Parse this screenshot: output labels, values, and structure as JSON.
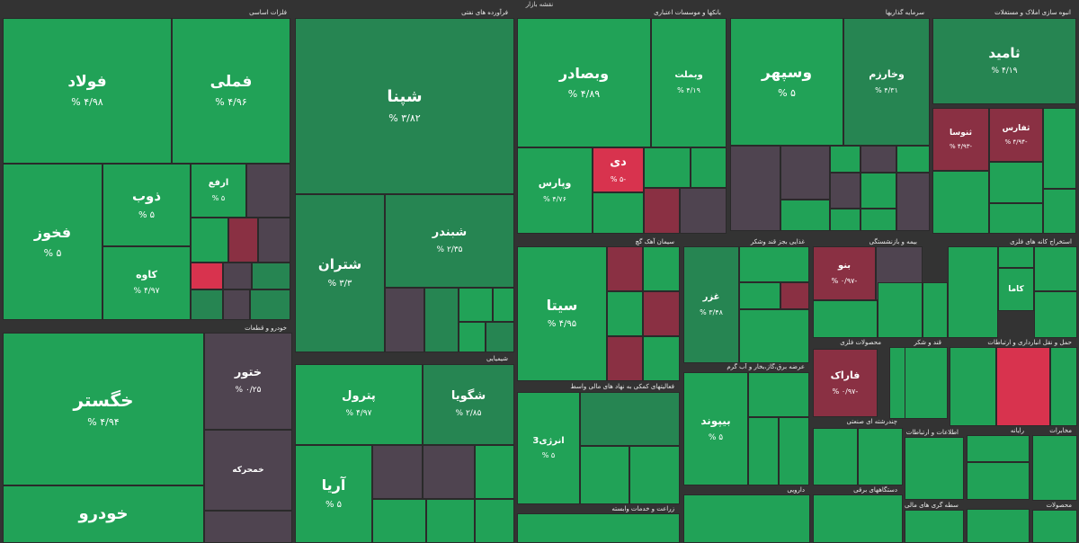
{
  "page_title": "نقشه بازار",
  "colors": {
    "green": "#21a257",
    "green_dark": "#268552",
    "gray": "#4f4450",
    "red": "#d8334e",
    "red_dark": "#8a3043"
  },
  "chart_data": {
    "type": "treemap",
    "title": "نقشه بازار",
    "sectors": [
      {
        "name": "فلزات اساسی"
      },
      {
        "name": "فرآورده های نفتی"
      },
      {
        "name": "بانکها و موسسات اعتباری"
      },
      {
        "name": "سرمایه گذاریها"
      },
      {
        "name": "انبوه سازی املاک و مستغلات"
      },
      {
        "name": "خودرو و قطعات"
      },
      {
        "name": "شیمیایی"
      },
      {
        "name": "سیمان آهک گچ"
      },
      {
        "name": "غذایی بجز قند وشکر"
      },
      {
        "name": "بیمه و بازنشستگی"
      },
      {
        "name": "استخراج کانه های فلزی"
      },
      {
        "name": "محصولات فلزی"
      },
      {
        "name": "قند و شکر"
      },
      {
        "name": "حمل و نقل انبارداری و ارتباطات"
      },
      {
        "name": "عرضه برق،گاز،بخار و آب گرم"
      },
      {
        "name": "فعالیتهای کمکی به نهاد های مالی واسط"
      },
      {
        "name": "چندرشته ای صنعتی"
      },
      {
        "name": "اطلاعات و ارتباطات"
      },
      {
        "name": "رایانه"
      },
      {
        "name": "زراعت و خدمات وابسته"
      },
      {
        "name": "دارویی"
      },
      {
        "name": "دستگاههای برقی"
      },
      {
        "name": "واسطه گری های مالی"
      },
      {
        "name": "مخابرات"
      },
      {
        "name": "محصولات"
      }
    ],
    "tiles": [
      {
        "name": "فولاد",
        "value": "۴/۹۸ %",
        "change": 4.98
      },
      {
        "name": "فملی",
        "value": "۴/۹۶ %",
        "change": 4.96
      },
      {
        "name": "ذوب",
        "value": "۵ %",
        "change": 5
      },
      {
        "name": "ارفع",
        "value": "۵ %",
        "change": 5
      },
      {
        "name": "فخوز",
        "value": "۵ %",
        "change": 5
      },
      {
        "name": "کاوه",
        "value": "۴/۹۷ %",
        "change": 4.97
      },
      {
        "name": "شپنا",
        "value": "۳/۸۲ %",
        "change": 3.82
      },
      {
        "name": "شتران",
        "value": "۳/۳ %",
        "change": 3.3
      },
      {
        "name": "شبندر",
        "value": "۲/۳۵ %",
        "change": 2.35
      },
      {
        "name": "وبصادر",
        "value": "۴/۸۹ %",
        "change": 4.89
      },
      {
        "name": "وبملت",
        "value": "۴/۱۹ %",
        "change": 4.19
      },
      {
        "name": "وپارس",
        "value": "۴/۷۶ %",
        "change": 4.76
      },
      {
        "name": "دی",
        "value": "-۵ %",
        "change": -5
      },
      {
        "name": "وسپهر",
        "value": "۵ %",
        "change": 5
      },
      {
        "name": "وخارزم",
        "value": "۴/۳۱ %",
        "change": 4.31
      },
      {
        "name": "ثامید",
        "value": "۴/۱۹ %",
        "change": 4.19
      },
      {
        "name": "ثنوسا",
        "value": "-۴/۹۳ %",
        "change": -4.93
      },
      {
        "name": "ثفارس",
        "value": "-۴/۹۴ %",
        "change": -4.94
      },
      {
        "name": "خگستر",
        "value": "۴/۹۴ %",
        "change": 4.94
      },
      {
        "name": "ختور",
        "value": "۰/۲۵ %",
        "change": 0.25
      },
      {
        "name": "خمحرکه",
        "value": "",
        "change": 0
      },
      {
        "name": "خودرو",
        "value": "",
        "change": 5
      },
      {
        "name": "پترول",
        "value": "۴/۹۷ %",
        "change": 4.97
      },
      {
        "name": "شگویا",
        "value": "۲/۸۵ %",
        "change": 2.85
      },
      {
        "name": "آریا",
        "value": "۵ %",
        "change": 5
      },
      {
        "name": "سیتا",
        "value": "۴/۹۵ %",
        "change": 4.95
      },
      {
        "name": "انرژی3",
        "value": "۵ %",
        "change": 5
      },
      {
        "name": "بیپوند",
        "value": "۵ %",
        "change": 5
      },
      {
        "name": "فاراک",
        "value": "-۰/۹۷ %",
        "change": -0.97
      },
      {
        "name": "بنو",
        "value": "-۰/۹۷ %",
        "change": -0.97
      },
      {
        "name": "کاما",
        "value": "",
        "change": 4.5
      },
      {
        "name": "غزر",
        "value": "۳/۴۸ %",
        "change": 3.48
      }
    ]
  },
  "tiles": [
    {
      "id": "folad",
      "name": "فولاد",
      "value": "۴/۹۸ %",
      "icon": "",
      "small": false
    },
    {
      "id": "fameli",
      "name": "فملی",
      "value": "۴/۹۶ %"
    },
    {
      "id": "zob",
      "name": "ذوب",
      "value": "۵ %"
    },
    {
      "id": "arfa",
      "name": "ارفع",
      "value": "۵ %"
    },
    {
      "id": "fakhooz",
      "name": "فخوز",
      "value": "۵ %"
    },
    {
      "id": "kave",
      "name": "کاوه",
      "value": "۴/۹۷ %"
    },
    {
      "id": "shepna",
      "name": "شپنا",
      "value": "۳/۸۲ %"
    },
    {
      "id": "shetran",
      "name": "شتران",
      "value": "۳/۳ %"
    },
    {
      "id": "shebandar",
      "name": "شبندر",
      "value": "۲/۳۵ %"
    },
    {
      "id": "vbsader",
      "name": "وبصادر",
      "value": "۴/۸۹ %"
    },
    {
      "id": "vbmelat",
      "name": "وبملت",
      "value": "۴/۱۹ %"
    },
    {
      "id": "vpars",
      "name": "وپارس",
      "value": "۴/۷۶ %"
    },
    {
      "id": "dey",
      "name": "دی",
      "value": "-۵ %"
    },
    {
      "id": "vsepehr",
      "name": "وسپهر",
      "value": "۵ %"
    },
    {
      "id": "vkharazm",
      "name": "وخارزم",
      "value": "۴/۳۱ %"
    },
    {
      "id": "samid",
      "name": "ثامید",
      "value": "۴/۱۹ %"
    },
    {
      "id": "sanosa",
      "name": "ثنوسا",
      "value": "-۴/۹۳ %"
    },
    {
      "id": "safars",
      "name": "ثفارس",
      "value": "-۴/۹۴ %"
    },
    {
      "id": "khgostar",
      "name": "خگستر",
      "value": "۴/۹۴ %"
    },
    {
      "id": "khtoor",
      "name": "ختور",
      "value": "۰/۲۵ %"
    },
    {
      "id": "khmoharreke",
      "name": "خمحرکه",
      "value": ""
    },
    {
      "id": "khodro",
      "name": "خودرو",
      "value": ""
    },
    {
      "id": "petrol",
      "name": "پترول",
      "value": "۴/۹۷ %"
    },
    {
      "id": "shegooya",
      "name": "شگویا",
      "value": "۲/۸۵ %"
    },
    {
      "id": "arya",
      "name": "آریا",
      "value": "۵ %"
    },
    {
      "id": "sita",
      "name": "سیتا",
      "value": "۴/۹۵ %"
    },
    {
      "id": "energy3",
      "name": "انرژی3",
      "value": "۵ %"
    },
    {
      "id": "bipayvand",
      "name": "بیپوند",
      "value": "۵ %"
    },
    {
      "id": "farak",
      "name": "فاراک",
      "value": "-۰/۹۷ %"
    },
    {
      "id": "bno",
      "name": "بنو",
      "value": "-۰/۹۷ %"
    },
    {
      "id": "kama",
      "name": "کاما",
      "value": ""
    },
    {
      "id": "ghazar",
      "name": "غزر",
      "value": "۳/۴۸ %"
    }
  ]
}
